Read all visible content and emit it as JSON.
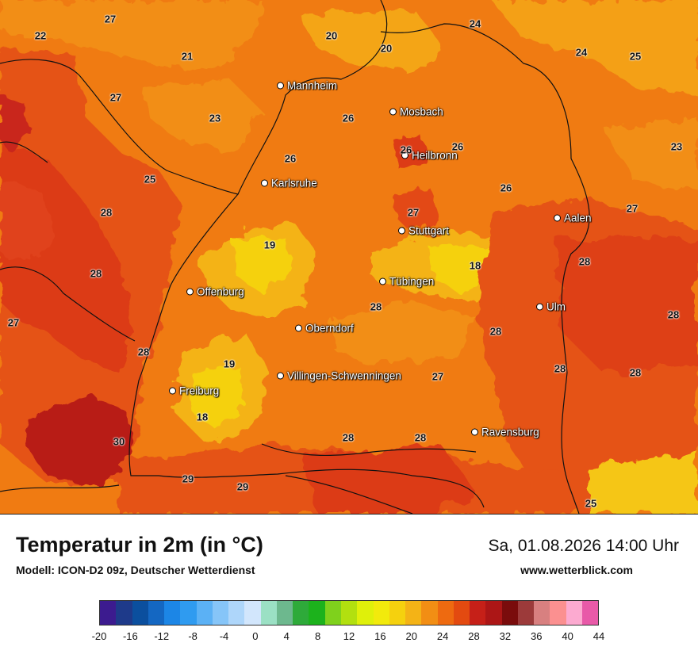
{
  "header": {
    "title": "Temperatur in 2m (in °C)",
    "subtitle": "Modell: ICON-D2 09z, Deutscher Wetterdienst",
    "datetime": "Sa, 01.08.2026 14:00 Uhr",
    "website": "www.wetterblick.com"
  },
  "cities": [
    {
      "name": "Mannheim"
    },
    {
      "name": "Mosbach"
    },
    {
      "name": "Heilbronn"
    },
    {
      "name": "Karlsruhe"
    },
    {
      "name": "Stuttgart"
    },
    {
      "name": "Aalen"
    },
    {
      "name": "Tübingen"
    },
    {
      "name": "Offenburg"
    },
    {
      "name": "Ulm"
    },
    {
      "name": "Oberndorf"
    },
    {
      "name": "Villingen-Schwenningen"
    },
    {
      "name": "Freiburg"
    },
    {
      "name": "Ravensburg"
    }
  ],
  "values": [
    "27",
    "22",
    "20",
    "24",
    "21",
    "20",
    "24",
    "25",
    "27",
    "23",
    "26",
    "26",
    "26",
    "23",
    "25",
    "26",
    "28",
    "27",
    "26",
    "27",
    "19",
    "18",
    "28",
    "28",
    "27",
    "28",
    "28",
    "28",
    "19",
    "27",
    "28",
    "18",
    "28",
    "28",
    "30",
    "29",
    "29",
    "25"
  ],
  "legend": {
    "ticks": [
      "-20",
      "-16",
      "-12",
      "-8",
      "-4",
      "0",
      "4",
      "8",
      "12",
      "16",
      "20",
      "24",
      "28",
      "32",
      "36",
      "40",
      "44"
    ],
    "colors": [
      "#3c1b8f",
      "#1e3a8a",
      "#0b4f9e",
      "#1467c2",
      "#1c86e6",
      "#2f9bf0",
      "#5bb1f5",
      "#86c5f8",
      "#aed6fa",
      "#d2e6fc",
      "#9be0c4",
      "#6db88e",
      "#2eaa3a",
      "#1cb21c",
      "#7fd11c",
      "#b2e00f",
      "#dff00a",
      "#f2ea0c",
      "#f5d10e",
      "#f4b316",
      "#f28e14",
      "#ee6a10",
      "#e34a10",
      "#c62018",
      "#ac1616",
      "#7a0c0c",
      "#9c3a3a",
      "#d88080",
      "#fb9090",
      "#fcaad0",
      "#e85aa8"
    ]
  }
}
